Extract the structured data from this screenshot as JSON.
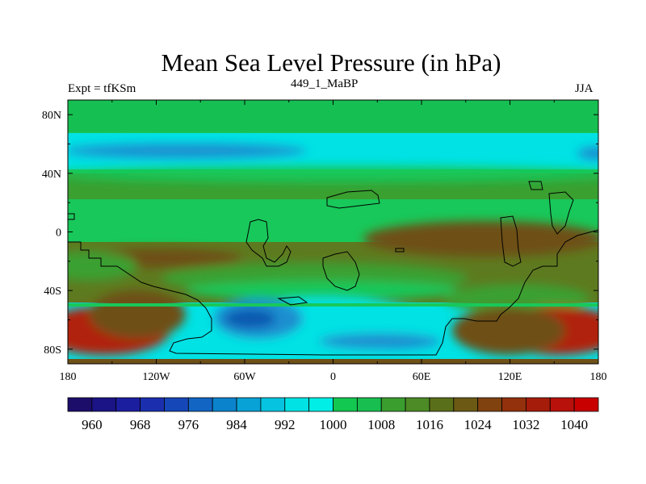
{
  "title": "Mean Sea Level Pressure (in hPa)",
  "left_label": "Expt = tfKSm",
  "center_label": "449_1_MaBP",
  "right_label": "JJA",
  "chart_data": {
    "type": "heatmap",
    "variable": "Mean Sea Level Pressure",
    "units": "hPa",
    "x_ticks": [
      "180",
      "120W",
      "60W",
      "0",
      "60E",
      "120E",
      "180"
    ],
    "y_ticks": [
      "80N",
      "40N",
      "0",
      "40S",
      "80S"
    ],
    "xlim": [
      -180,
      180
    ],
    "ylim": [
      -90,
      90
    ],
    "colorbar": {
      "levels": [
        960,
        964,
        968,
        972,
        976,
        980,
        984,
        988,
        992,
        996,
        1000,
        1004,
        1008,
        1012,
        1016,
        1020,
        1024,
        1028,
        1032,
        1036,
        1040
      ],
      "labels": [
        "960",
        "968",
        "976",
        "984",
        "992",
        "1000",
        "1008",
        "1016",
        "1024",
        "1032",
        "1040"
      ],
      "colors": [
        "#1c0d6b",
        "#1a1486",
        "#1c1ea0",
        "#1b2fae",
        "#1647b8",
        "#1265c3",
        "#0b83cc",
        "#08a2d6",
        "#06c4df",
        "#00e2e4",
        "#00eee5",
        "#12c850",
        "#18bf50",
        "#3a9e2e",
        "#4c8b25",
        "#5a6f19",
        "#6c5a14",
        "#80420f",
        "#92310c",
        "#a51c0a",
        "#b8100a",
        "#c80000"
      ]
    },
    "fields": {
      "deep_low_color": "#1059b0",
      "low_color": "#1a8fd0",
      "cyan_color": "#00e2e4",
      "green_color": "#18c85a",
      "mid_green_color": "#3aa030",
      "olive_color": "#5e7a20",
      "brown_color": "#6e5018",
      "red_high_color": "#b0200e"
    }
  }
}
